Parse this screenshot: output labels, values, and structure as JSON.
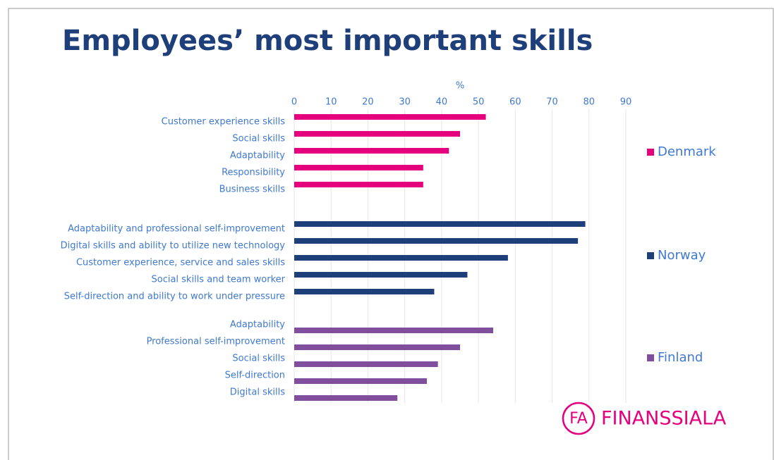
{
  "chart_data": {
    "type": "bar",
    "orientation": "horizontal",
    "title": "Employees’ most important skills",
    "x_label": "%",
    "xlim": [
      0,
      90
    ],
    "xticks": [
      0,
      10,
      20,
      30,
      40,
      50,
      60,
      70,
      80,
      90
    ],
    "grid": true,
    "legend": "right",
    "series": [
      {
        "name": "Denmark",
        "color": "#e5007e",
        "categories": [
          "Customer experience skills",
          "Social skills",
          "Adaptability",
          "Responsibility",
          "Business skills"
        ],
        "values": [
          52,
          45,
          42,
          35,
          35
        ]
      },
      {
        "name": "Norway",
        "color": "#1f3f7a",
        "categories": [
          "Adaptability and professional self-improvement",
          "Digital skills and ability to utilize new technology",
          "Customer experience, service and sales skills",
          "Social skills and team worker",
          "Self-direction and ability to work under pressure"
        ],
        "values": [
          79,
          77,
          58,
          47,
          38
        ]
      },
      {
        "name": "Finland",
        "color": "#7f4f9e",
        "categories": [
          "Adaptability",
          "Professional self-improvement",
          "Social skills",
          "Self-direction",
          "Digital skills"
        ],
        "values": [
          54,
          45,
          39,
          36,
          28
        ]
      }
    ]
  },
  "logo": {
    "mark": "FA",
    "text": "FINANSSIALA"
  }
}
